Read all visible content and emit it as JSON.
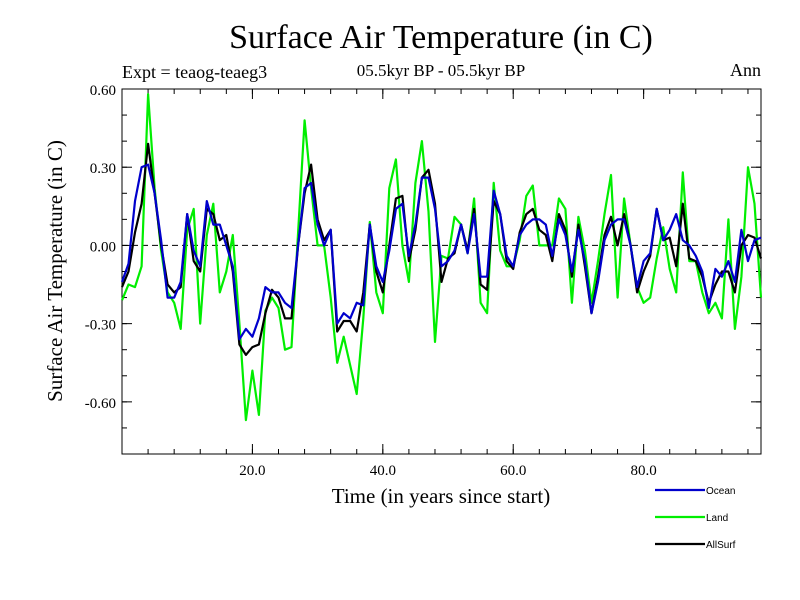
{
  "chart_data": {
    "type": "line",
    "title": "Surface Air Temperature (in C)",
    "subtitle": "05.5kyr BP - 05.5kyr BP",
    "experiment": "Expt = teaog-teaeg3",
    "season": "Ann",
    "xlabel": "Time (in years since start)",
    "ylabel": "Surface Air Temperature (in C)",
    "xlim": [
      0,
      98
    ],
    "ylim": [
      -0.8,
      0.6
    ],
    "xticks": [
      20,
      40,
      60,
      80
    ],
    "xtick_labels": [
      "20.0",
      "40.0",
      "60.0",
      "80.0"
    ],
    "yticks": [
      0.6,
      0.3,
      0.0,
      -0.3,
      -0.6
    ],
    "ytick_labels": [
      "0.60",
      "0.30",
      "0.00",
      "-0.30",
      "-0.60"
    ],
    "reference_line": 0.0,
    "series": [
      {
        "name": "Land",
        "color": "#00ee00",
        "values": [
          -0.21,
          -0.15,
          -0.16,
          -0.08,
          0.58,
          0.22,
          -0.02,
          -0.18,
          -0.22,
          -0.32,
          0.06,
          0.14,
          -0.3,
          0.04,
          0.16,
          -0.18,
          -0.1,
          0.04,
          -0.3,
          -0.67,
          -0.48,
          -0.65,
          -0.25,
          -0.2,
          -0.24,
          -0.4,
          -0.39,
          0.05,
          0.48,
          0.22,
          0.0,
          0.0,
          -0.2,
          -0.45,
          -0.35,
          -0.46,
          -0.57,
          -0.28,
          0.09,
          -0.18,
          -0.26,
          0.22,
          0.33,
          0.0,
          -0.14,
          0.24,
          0.4,
          0.13,
          -0.37,
          -0.04,
          -0.05,
          0.11,
          0.08,
          -0.03,
          0.18,
          -0.22,
          -0.26,
          0.24,
          -0.02,
          -0.08,
          -0.08,
          0.02,
          0.19,
          0.23,
          0.0,
          0.0,
          0.0,
          0.18,
          0.14,
          -0.22,
          0.11,
          -0.02,
          -0.22,
          -0.06,
          0.12,
          0.27,
          -0.2,
          0.18,
          0.0,
          -0.16,
          -0.22,
          -0.2,
          -0.05,
          0.07,
          -0.09,
          -0.18,
          0.28,
          -0.06,
          -0.06,
          -0.18,
          -0.26,
          -0.22,
          -0.28,
          0.1,
          -0.32,
          -0.12,
          0.3,
          0.16,
          -0.2
        ]
      },
      {
        "name": "AllSurf",
        "color": "#000000",
        "values": [
          -0.16,
          -0.1,
          0.05,
          0.16,
          0.39,
          0.2,
          0.0,
          -0.15,
          -0.18,
          -0.16,
          0.12,
          -0.06,
          -0.1,
          0.14,
          0.12,
          0.02,
          0.04,
          -0.1,
          -0.38,
          -0.42,
          -0.39,
          -0.38,
          -0.26,
          -0.17,
          -0.2,
          -0.28,
          -0.28,
          0.0,
          0.2,
          0.31,
          0.1,
          0.02,
          0.06,
          -0.33,
          -0.29,
          -0.29,
          -0.33,
          -0.18,
          0.08,
          -0.1,
          -0.18,
          0.0,
          0.18,
          0.19,
          -0.06,
          0.06,
          0.26,
          0.29,
          0.16,
          -0.14,
          -0.05,
          -0.03,
          0.08,
          -0.02,
          0.14,
          -0.15,
          -0.17,
          0.17,
          0.12,
          -0.06,
          -0.09,
          0.05,
          0.12,
          0.14,
          0.06,
          0.04,
          -0.06,
          0.12,
          0.06,
          -0.12,
          0.08,
          -0.08,
          -0.26,
          -0.12,
          0.04,
          0.11,
          0.0,
          0.12,
          0.0,
          -0.18,
          -0.1,
          -0.04,
          0.14,
          0.02,
          0.03,
          -0.08,
          0.16,
          -0.05,
          -0.06,
          -0.12,
          -0.22,
          -0.15,
          -0.1,
          -0.1,
          -0.18,
          0.0,
          0.04,
          0.03,
          -0.05
        ]
      },
      {
        "name": "Ocean",
        "color": "#0000cc",
        "values": [
          -0.14,
          -0.07,
          0.17,
          0.3,
          0.31,
          0.2,
          0.02,
          -0.2,
          -0.2,
          -0.14,
          0.12,
          -0.02,
          -0.08,
          0.17,
          0.08,
          0.08,
          0.0,
          -0.08,
          -0.36,
          -0.32,
          -0.35,
          -0.28,
          -0.16,
          -0.18,
          -0.18,
          -0.22,
          -0.24,
          0.0,
          0.22,
          0.24,
          0.08,
          0.0,
          0.06,
          -0.3,
          -0.26,
          -0.28,
          -0.22,
          -0.23,
          0.08,
          -0.08,
          -0.14,
          -0.02,
          0.14,
          0.16,
          -0.04,
          0.08,
          0.26,
          0.26,
          0.14,
          -0.08,
          -0.06,
          -0.02,
          0.08,
          -0.03,
          0.12,
          -0.12,
          -0.12,
          0.21,
          0.12,
          -0.04,
          -0.08,
          0.04,
          0.08,
          0.1,
          0.1,
          0.08,
          -0.04,
          0.1,
          0.04,
          -0.1,
          0.06,
          -0.06,
          -0.26,
          -0.14,
          0.02,
          0.08,
          0.1,
          0.1,
          0.0,
          -0.16,
          -0.06,
          -0.03,
          0.14,
          0.02,
          0.06,
          0.12,
          0.02,
          0.0,
          -0.04,
          -0.1,
          -0.24,
          -0.09,
          -0.12,
          -0.06,
          -0.14,
          0.06,
          -0.06,
          0.02,
          0.03
        ]
      }
    ]
  }
}
